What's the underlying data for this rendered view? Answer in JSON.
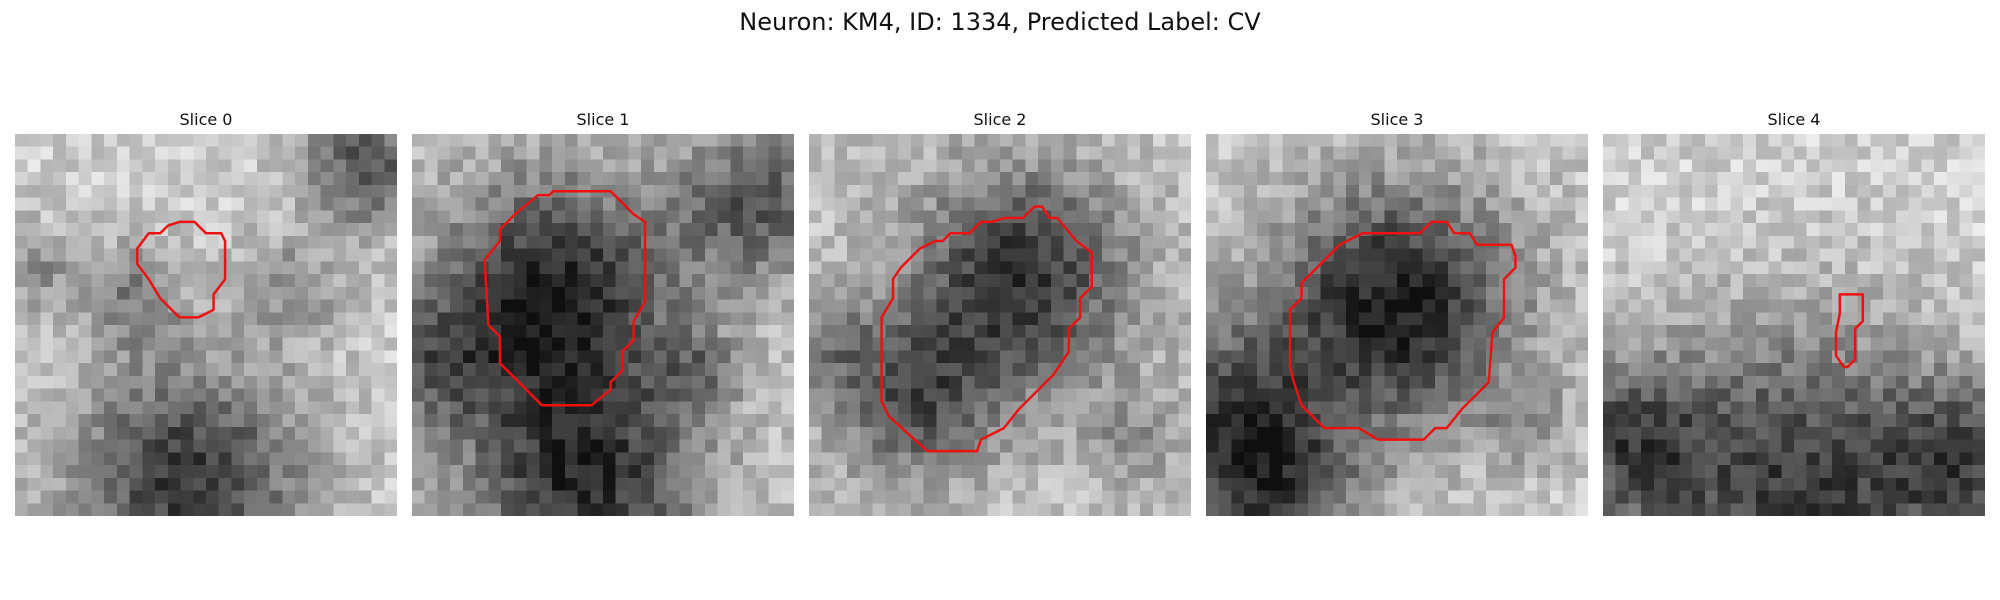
{
  "figure": {
    "title": "Neuron: KM4, ID: 1334, Predicted Label: CV"
  },
  "slices": [
    {
      "label": "Slice 0"
    },
    {
      "label": "Slice 1"
    },
    {
      "label": "Slice 2"
    },
    {
      "label": "Slice 3"
    },
    {
      "label": "Slice 4"
    }
  ],
  "colors": {
    "background": "#ffffff",
    "contour": "#ee1111",
    "colormap": "gray"
  },
  "image": {
    "grid_cells": 30
  }
}
